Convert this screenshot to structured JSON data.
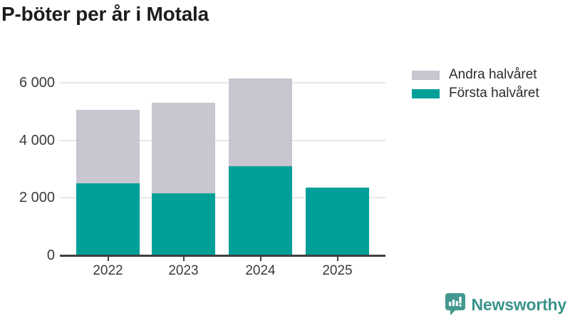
{
  "title": "P-böter per år i Motala",
  "colors": {
    "first_half": "#00a099",
    "second_half": "#c7c6d1",
    "gridline": "#e7e7e7",
    "axis": "#404040",
    "brand": "#3f968e"
  },
  "legend": [
    {
      "label": "Andra halvåret",
      "color": "#c7c6d1"
    },
    {
      "label": "Första halvåret",
      "color": "#00a099"
    }
  ],
  "chart_data": {
    "type": "bar",
    "stacked": true,
    "title": "P-böter per år i Motala",
    "categories": [
      "2022",
      "2023",
      "2024",
      "2025"
    ],
    "series": [
      {
        "name": "Första halvåret",
        "color": "#00a099",
        "values": [
          2500,
          2150,
          3100,
          2350
        ]
      },
      {
        "name": "Andra halvåret",
        "color": "#c7c6d1",
        "values": [
          2550,
          3150,
          3050,
          0
        ]
      }
    ],
    "totals": [
      5050,
      5300,
      6150,
      2350
    ],
    "xlabel": "",
    "ylabel": "",
    "ylim": [
      0,
      6400
    ],
    "yticks": [
      0,
      2000,
      4000,
      6000
    ],
    "ytick_labels": [
      "0",
      "2 000",
      "4 000",
      "6 000"
    ],
    "grid": true,
    "legend_position": "top-right"
  },
  "footer": {
    "brand": "Newsworthy"
  }
}
